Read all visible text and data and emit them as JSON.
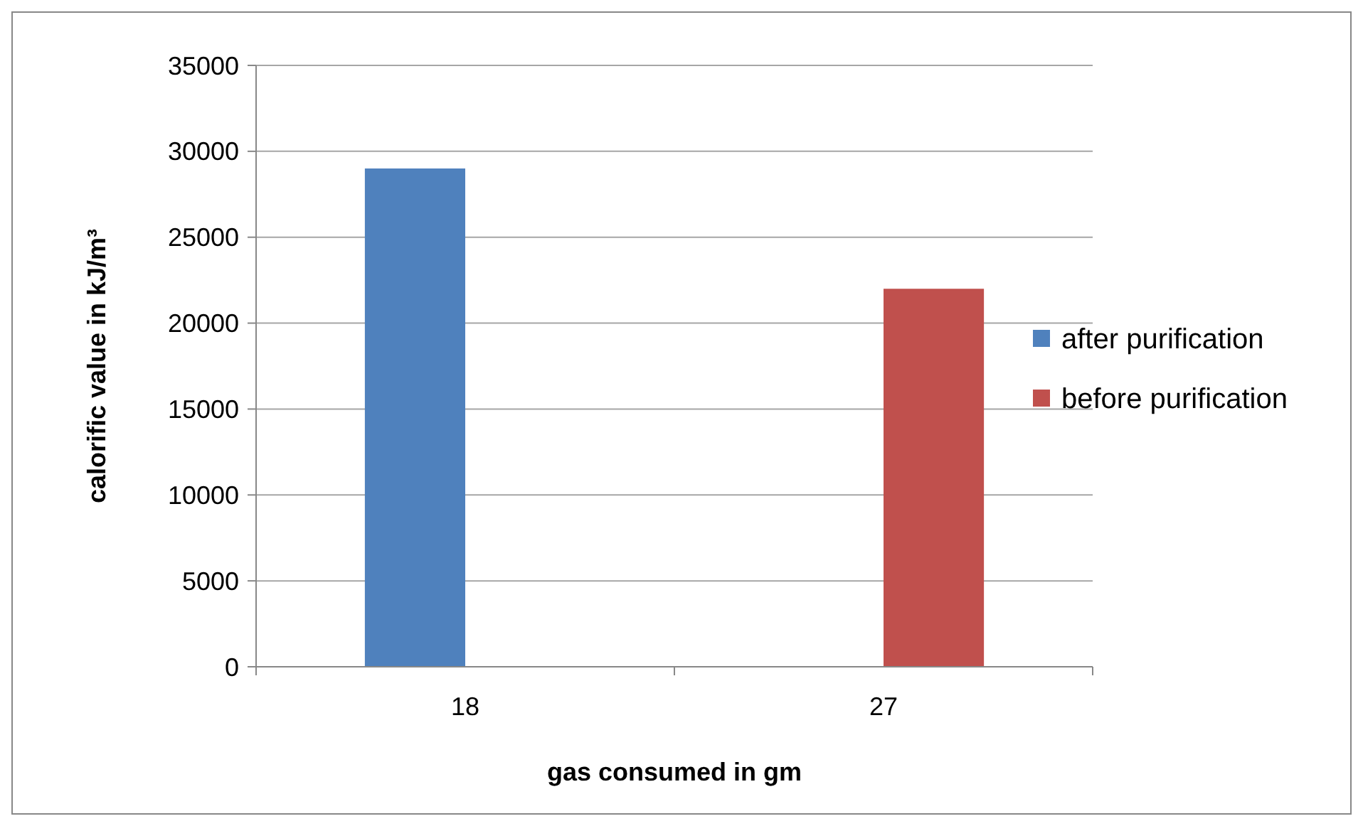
{
  "chart_data": {
    "type": "bar",
    "xlabel": "gas consumed in gm",
    "ylabel": "calorific value in kJ/m³",
    "categories": [
      "18",
      "27"
    ],
    "series": [
      {
        "name": "after purification",
        "color": "#4f81bd",
        "values": [
          29000,
          null
        ]
      },
      {
        "name": "before purification",
        "color": "#c0504d",
        "values": [
          null,
          22000
        ]
      }
    ],
    "ylim": [
      0,
      35000
    ],
    "yticks": [
      0,
      5000,
      10000,
      15000,
      20000,
      25000,
      30000,
      35000
    ],
    "grid": "y",
    "legend": "right"
  }
}
